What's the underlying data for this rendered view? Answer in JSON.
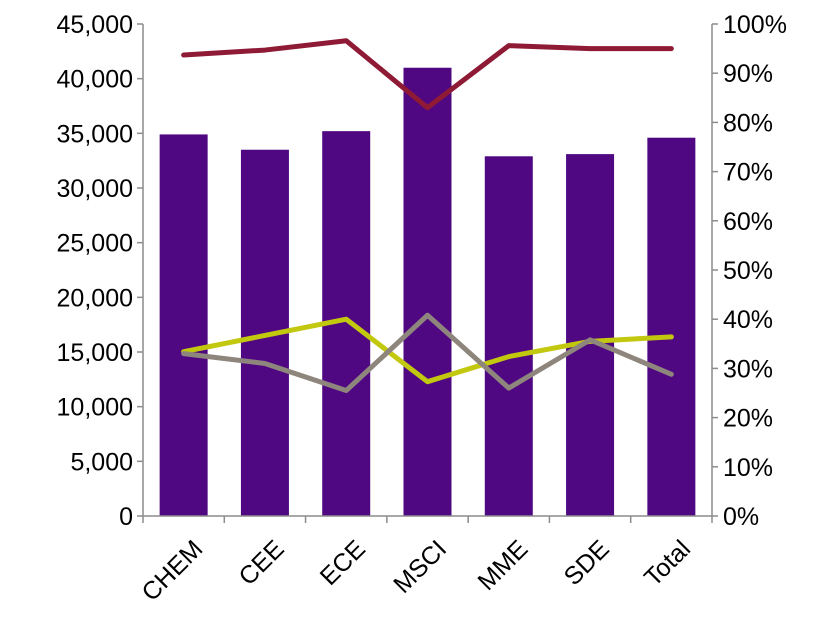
{
  "chart_data": {
    "type": "bar",
    "title": "",
    "xlabel": "",
    "ylabel": "",
    "categories": [
      "CHEM",
      "CEE",
      "ECE",
      "MSCI",
      "MME",
      "SDE",
      "Total"
    ],
    "ylim": [
      0,
      45000
    ],
    "yticks": [
      "0",
      "5,000",
      "10,000",
      "15,000",
      "20,000",
      "25,000",
      "30,000",
      "35,000",
      "40,000",
      "45,000"
    ],
    "y2lim": [
      0,
      100
    ],
    "y2ticks": [
      "0%",
      "10%",
      "20%",
      "30%",
      "40%",
      "50%",
      "60%",
      "70%",
      "80%",
      "90%",
      "100%"
    ],
    "grid": false,
    "series": [
      {
        "type": "bar",
        "axis": "left",
        "color": "#4f0782",
        "values": [
          34900,
          33500,
          35200,
          41000,
          32900,
          33100,
          34600
        ]
      },
      {
        "type": "line",
        "axis": "right",
        "color": "#8f1a35",
        "values": [
          93.7,
          94.7,
          96.6,
          83.0,
          95.6,
          95.0,
          95.0
        ]
      },
      {
        "type": "line",
        "axis": "right",
        "color": "#c2c80e",
        "values": [
          33.4,
          36.7,
          40.0,
          27.3,
          32.4,
          35.5,
          36.4
        ]
      },
      {
        "type": "line",
        "axis": "right",
        "color": "#8e867d",
        "values": [
          33.0,
          31.0,
          25.5,
          40.8,
          26.0,
          35.8,
          28.8
        ]
      }
    ]
  }
}
